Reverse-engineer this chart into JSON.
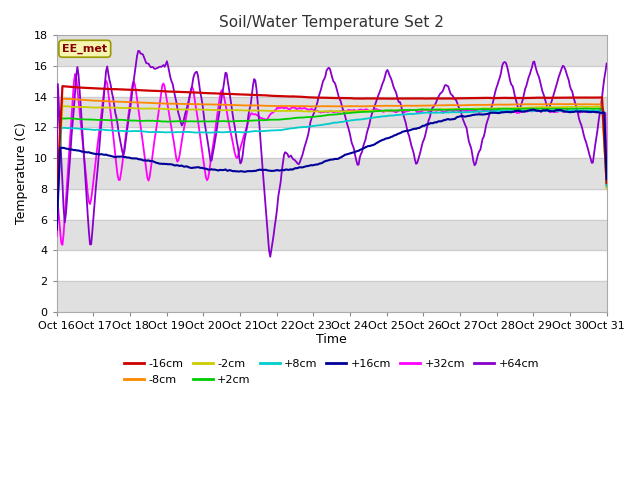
{
  "title": "Soil/Water Temperature Set 2",
  "xlabel": "Time",
  "ylabel": "Temperature (C)",
  "ylim": [
    0,
    18
  ],
  "yticks": [
    0,
    2,
    4,
    6,
    8,
    10,
    12,
    14,
    16,
    18
  ],
  "x_labels": [
    "Oct 16",
    "Oct 17",
    "Oct 18",
    "Oct 19",
    "Oct 20",
    "Oct 21",
    "Oct 22",
    "Oct 23",
    "Oct 24",
    "Oct 25",
    "Oct 26",
    "Oct 27",
    "Oct 28",
    "Oct 29",
    "Oct 30",
    "Oct 31"
  ],
  "annotation": "EE_met",
  "plot_bg": "#ffffff",
  "fig_bg": "#ffffff",
  "stripe_color": "#e0e0e0",
  "series": [
    {
      "label": "-16cm",
      "color": "#cc0000"
    },
    {
      "label": "-8cm",
      "color": "#ff8800"
    },
    {
      "label": "-2cm",
      "color": "#cccc00"
    },
    {
      "label": "+2cm",
      "color": "#00cc00"
    },
    {
      "label": "+8cm",
      "color": "#00cccc"
    },
    {
      "label": "+16cm",
      "color": "#000099"
    },
    {
      "label": "+32cm",
      "color": "#ff00ff"
    },
    {
      "label": "+64cm",
      "color": "#8800cc"
    }
  ],
  "num_points": 480
}
